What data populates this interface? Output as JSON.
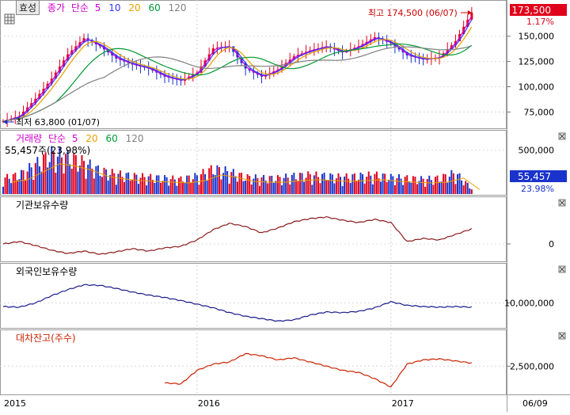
{
  "toolbar": {
    "tab_label": "효성"
  },
  "price_panel": {
    "legend": [
      {
        "text": "종가",
        "color": "#cc00cc"
      },
      {
        "text": "단순",
        "color": "#cc00cc"
      },
      {
        "text": "5",
        "color": "#cc00cc"
      },
      {
        "text": "10",
        "color": "#3333ff"
      },
      {
        "text": "20",
        "color": "#e8a000"
      },
      {
        "text": "60",
        "color": "#009933"
      },
      {
        "text": "120",
        "color": "#808080"
      }
    ],
    "current_price": "173,500",
    "change_pct": "1.17%",
    "high_label": "최고 174,500 (06/07)",
    "low_label": "최저 63,800 (01/07)",
    "axis_ticks": [
      "150,000",
      "125,000",
      "100,000",
      "75,000"
    ]
  },
  "volume_panel": {
    "legend": [
      {
        "text": "거래량",
        "color": "#cc00cc"
      },
      {
        "text": "단순",
        "color": "#cc00cc"
      },
      {
        "text": "5",
        "color": "#cc00cc"
      },
      {
        "text": "20",
        "color": "#e8a000"
      },
      {
        "text": "60",
        "color": "#009933"
      },
      {
        "text": "120",
        "color": "#808080"
      }
    ],
    "summary": "55,457주(23,98%)",
    "current_volume": "55,457",
    "current_pct": "23.98%",
    "axis_ticks": [
      "500,000"
    ]
  },
  "institution_panel": {
    "title": "기관보유수량",
    "axis_ticks": [
      "0"
    ]
  },
  "foreign_panel": {
    "title": "외국인보유수량",
    "axis_ticks": [
      "10,000,000"
    ]
  },
  "loan_panel": {
    "title": "대차잔고(주수)",
    "axis_ticks": [
      "2,500,000"
    ]
  },
  "x_axis": {
    "labels": [
      "2015",
      "2016",
      "2017"
    ],
    "last_date": "06/09"
  },
  "colors": {
    "up": "#e0001b",
    "down": "#1a33cc",
    "ma5": "#cc00cc",
    "ma10": "#3333ff",
    "ma20": "#e8a000",
    "ma60": "#009933",
    "ma120": "#808080",
    "institution_line": "#8b1a1a",
    "foreign_line": "#1a1a8b",
    "loan_line": "#cc2200"
  },
  "chart_data": [
    {
      "type": "line",
      "title": "종가",
      "x": [
        "2015-01",
        "2015-02",
        "2015-03",
        "2015-04",
        "2015-05",
        "2015-06",
        "2015-07",
        "2015-08",
        "2015-09",
        "2015-10",
        "2015-11",
        "2015-12",
        "2016-01",
        "2016-02",
        "2016-03",
        "2016-04",
        "2016-05",
        "2016-06",
        "2016-07",
        "2016-08",
        "2016-09",
        "2016-10",
        "2016-11",
        "2016-12",
        "2017-01",
        "2017-02",
        "2017-03",
        "2017-04",
        "2017-05",
        "2017-06"
      ],
      "series": [
        {
          "name": "종가",
          "values": [
            66000,
            71000,
            88000,
            108000,
            132000,
            148000,
            140000,
            128000,
            122000,
            118000,
            110000,
            106000,
            114000,
            138000,
            140000,
            118000,
            110000,
            117000,
            130000,
            136000,
            140000,
            134000,
            140000,
            149000,
            143000,
            131000,
            127000,
            129000,
            145000,
            173500
          ]
        }
      ],
      "ylim": [
        62000,
        178000
      ],
      "annotations": [
        "최고 174,500 (06/07)",
        "최저 63,800 (01/07)"
      ]
    },
    {
      "type": "bar",
      "title": "거래량",
      "categories": [
        "2015-01",
        "2015-02",
        "2015-03",
        "2015-04",
        "2015-05",
        "2015-06",
        "2015-07",
        "2015-08",
        "2015-09",
        "2015-10",
        "2015-11",
        "2015-12",
        "2016-01",
        "2016-02",
        "2016-03",
        "2016-04",
        "2016-05",
        "2016-06",
        "2016-07",
        "2016-08",
        "2016-09",
        "2016-10",
        "2016-11",
        "2016-12",
        "2017-01",
        "2017-02",
        "2017-03",
        "2017-04",
        "2017-05",
        "2017-06"
      ],
      "values": [
        150000,
        180000,
        280000,
        380000,
        350000,
        300000,
        220000,
        190000,
        170000,
        160000,
        150000,
        140000,
        170000,
        240000,
        210000,
        160000,
        150000,
        150000,
        170000,
        180000,
        170000,
        160000,
        170000,
        180000,
        160000,
        150000,
        140000,
        150000,
        200000,
        55457
      ],
      "ylim": [
        0,
        700000
      ]
    },
    {
      "type": "line",
      "title": "기관보유수량",
      "x": [
        "2015-01",
        "2015-02",
        "2015-03",
        "2015-04",
        "2015-05",
        "2015-06",
        "2015-07",
        "2015-08",
        "2015-09",
        "2015-10",
        "2015-11",
        "2015-12",
        "2016-01",
        "2016-02",
        "2016-03",
        "2016-04",
        "2016-05",
        "2016-06",
        "2016-07",
        "2016-08",
        "2016-09",
        "2016-10",
        "2016-11",
        "2016-12",
        "2017-01",
        "2017-02",
        "2017-03",
        "2017-04",
        "2017-05",
        "2017-06"
      ],
      "series": [
        {
          "name": "기관보유수량",
          "values": [
            0,
            300000,
            -200000,
            -800000,
            -1200000,
            -900000,
            -1300000,
            -1000000,
            -600000,
            -900000,
            -500000,
            -300000,
            500000,
            1800000,
            2600000,
            2200000,
            1400000,
            2000000,
            2800000,
            3200000,
            3400000,
            3000000,
            2700000,
            3100000,
            2700000,
            300000,
            700000,
            500000,
            1200000,
            1900000
          ]
        }
      ],
      "ylim": [
        -1800000,
        4000000
      ]
    },
    {
      "type": "line",
      "title": "외국인보유수량",
      "x": [
        "2015-01",
        "2015-02",
        "2015-03",
        "2015-04",
        "2015-05",
        "2015-06",
        "2015-07",
        "2015-08",
        "2015-09",
        "2015-10",
        "2015-11",
        "2015-12",
        "2016-01",
        "2016-02",
        "2016-03",
        "2016-04",
        "2016-05",
        "2016-06",
        "2016-07",
        "2016-08",
        "2016-09",
        "2016-10",
        "2016-11",
        "2016-12",
        "2017-01",
        "2017-02",
        "2017-03",
        "2017-04",
        "2017-05",
        "2017-06"
      ],
      "series": [
        {
          "name": "외국인보유수량",
          "values": [
            9700000,
            9650000,
            10000000,
            10600000,
            11100000,
            11500000,
            11450000,
            11200000,
            10900000,
            10650000,
            10450000,
            10200000,
            9900000,
            9600000,
            9200000,
            8900000,
            8700000,
            8500000,
            8600000,
            9000000,
            9250000,
            9200000,
            9300000,
            9600000,
            10100000,
            9800000,
            9700000,
            9650000,
            9700000,
            9650000
          ]
        }
      ],
      "ylim": [
        8200000,
        12000000
      ]
    },
    {
      "type": "line",
      "title": "대차잔고(주수)",
      "x": [
        "2015-11",
        "2015-12",
        "2016-01",
        "2016-02",
        "2016-03",
        "2016-04",
        "2016-05",
        "2016-06",
        "2016-07",
        "2016-08",
        "2016-09",
        "2016-10",
        "2016-11",
        "2016-12",
        "2017-01",
        "2017-02",
        "2017-03",
        "2017-04",
        "2017-05",
        "2017-06"
      ],
      "series": [
        {
          "name": "대차잔고(주수)",
          "values": [
            1700000,
            1650000,
            2300000,
            2600000,
            2700000,
            3100000,
            3000000,
            2800000,
            2900000,
            2700000,
            2500000,
            2300000,
            2200000,
            1900000,
            1500000,
            2600000,
            2800000,
            2850000,
            2750000,
            2650000
          ]
        }
      ],
      "ylim": [
        1300000,
        3500000
      ]
    }
  ]
}
